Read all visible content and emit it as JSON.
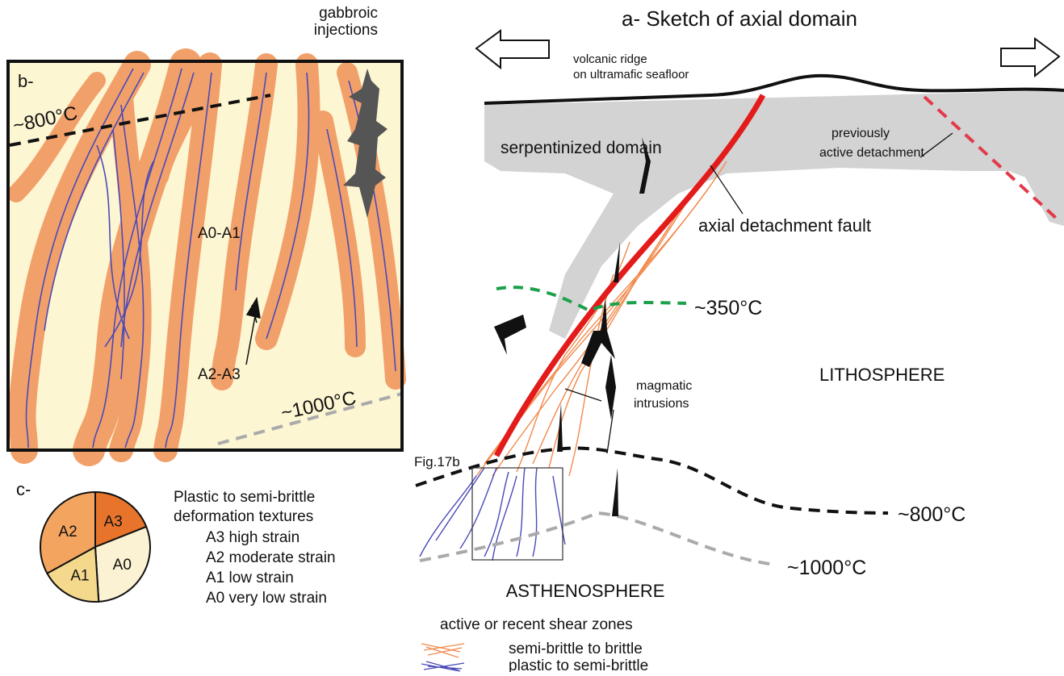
{
  "panel_a": {
    "title": "a- Sketch of axial domain",
    "volcanic_ridge": [
      "volcanic ridge",
      "on ultramafic seafloor"
    ],
    "serpentinized": "serpentinized domain",
    "previous_detachment": [
      "previously",
      "active detachment"
    ],
    "axial_fault": "axial detachment fault",
    "iso_350": "~350°C",
    "lithosphere": "LITHOSPHERE",
    "magmatic": [
      "magmatic",
      "intrusions"
    ],
    "fig_ref": "Fig.17b",
    "iso_800": "~800°C",
    "iso_1000": "~1000°C",
    "asthenosphere": "ASTHENOSPHERE",
    "legend_title": "active or recent shear zones",
    "legend_items": [
      "semi-brittle to brittle",
      "plastic to semi-brittle"
    ]
  },
  "panel_b": {
    "label": "b-",
    "gabbroic": [
      "gabbroic",
      "injections"
    ],
    "iso_800": "~800°C",
    "a0a1": "A0-A1",
    "a2a3": "A2-A3",
    "iso_1000": "~1000°C"
  },
  "panel_c": {
    "label": "c-",
    "heading": [
      "Plastic to semi-brittle",
      "deformation textures"
    ],
    "slices": [
      {
        "label": "A3",
        "value": 19,
        "color": "#e8742c"
      },
      {
        "label": "A0",
        "value": 30,
        "color": "#fbf2d3"
      },
      {
        "label": "A1",
        "value": 18,
        "color": "#f4d98c"
      },
      {
        "label": "A2",
        "value": 33,
        "color": "#f3a560"
      }
    ],
    "legend": [
      "A3 high strain",
      "A2 moderate strain",
      "A1 low strain",
      "A0 very low strain"
    ]
  }
}
